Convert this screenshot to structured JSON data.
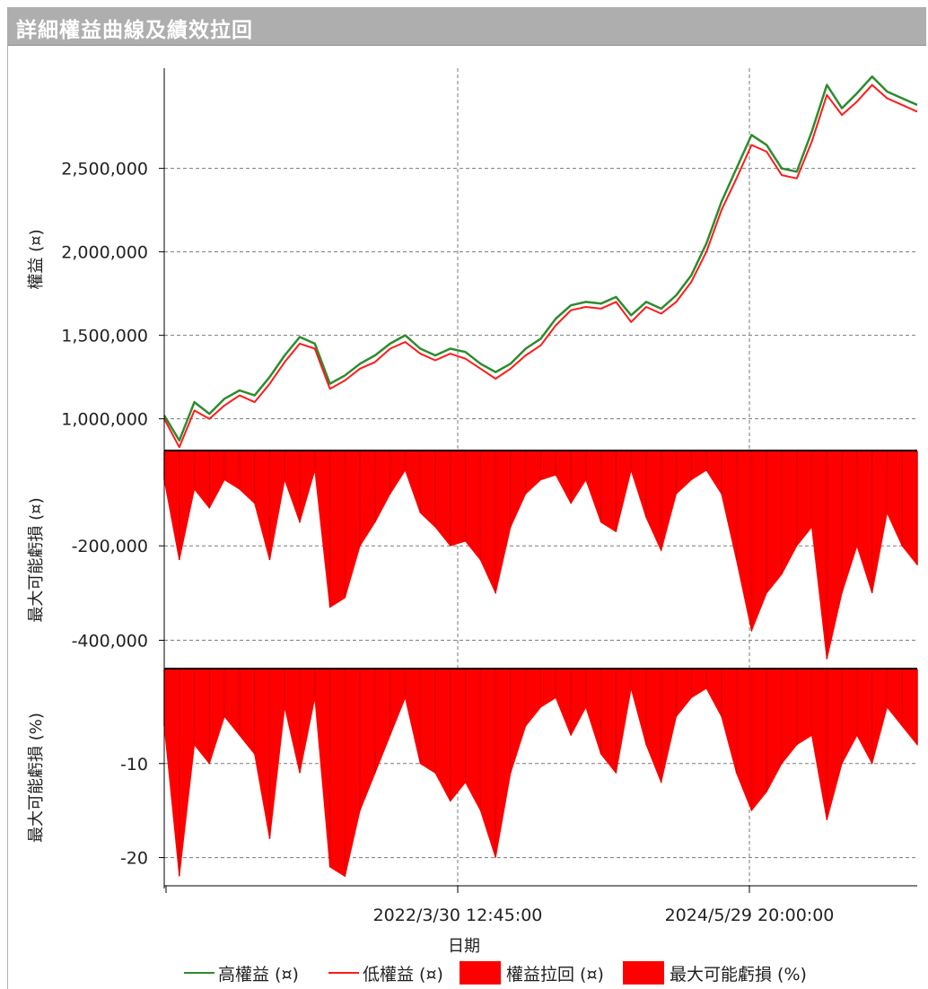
{
  "window": {
    "title": "詳細權益曲線及績效拉回"
  },
  "colors": {
    "high": "#2e8b2e",
    "low": "#ff1a1a",
    "fill": "#ff0000",
    "grid": "#7a7a7a"
  },
  "x_axis": {
    "label": "日期",
    "ticks": [
      "2022/3/30 12:45:00",
      "2024/5/29 20:00:00"
    ]
  },
  "legend": [
    {
      "label": "高權益 (¤)",
      "kind": "line",
      "color": "#2e8b2e"
    },
    {
      "label": "低權益 (¤)",
      "kind": "line",
      "color": "#ff1a1a"
    },
    {
      "label": "權益拉回 (¤)",
      "kind": "box",
      "color": "#ff0000"
    },
    {
      "label": "最大可能虧損 (%)",
      "kind": "box",
      "color": "#ff0000"
    }
  ],
  "chart_data": [
    {
      "type": "line",
      "ylabel": "權益 (¤)",
      "ylim": [
        810000,
        3100000
      ],
      "yticks": [
        "1,000,000",
        "1,500,000",
        "2,000,000",
        "2,500,000"
      ],
      "ytick_values": [
        1000000,
        1500000,
        2000000,
        2500000
      ],
      "x": [
        0,
        0.02,
        0.04,
        0.06,
        0.08,
        0.1,
        0.12,
        0.14,
        0.16,
        0.18,
        0.2,
        0.22,
        0.24,
        0.26,
        0.28,
        0.3,
        0.32,
        0.34,
        0.36,
        0.38,
        0.4,
        0.42,
        0.44,
        0.46,
        0.48,
        0.5,
        0.52,
        0.54,
        0.56,
        0.58,
        0.6,
        0.62,
        0.64,
        0.66,
        0.68,
        0.7,
        0.72,
        0.74,
        0.76,
        0.78,
        0.8,
        0.82,
        0.84,
        0.86,
        0.88,
        0.9,
        0.92,
        0.94,
        0.96,
        0.98,
        1.0
      ],
      "series": [
        {
          "name": "高權益 (¤)",
          "values": [
            1020000,
            870000,
            1100000,
            1030000,
            1120000,
            1170000,
            1140000,
            1250000,
            1380000,
            1490000,
            1450000,
            1210000,
            1260000,
            1330000,
            1380000,
            1450000,
            1500000,
            1420000,
            1380000,
            1420000,
            1400000,
            1330000,
            1280000,
            1330000,
            1420000,
            1480000,
            1600000,
            1680000,
            1700000,
            1690000,
            1730000,
            1620000,
            1700000,
            1660000,
            1740000,
            1860000,
            2050000,
            2300000,
            2500000,
            2700000,
            2640000,
            2500000,
            2480000,
            2720000,
            3000000,
            2860000,
            2950000,
            3050000,
            2960000,
            2920000,
            2880000
          ]
        },
        {
          "name": "低權益 (¤)",
          "values": [
            1000000,
            830000,
            1050000,
            1000000,
            1080000,
            1140000,
            1100000,
            1210000,
            1340000,
            1450000,
            1420000,
            1180000,
            1230000,
            1300000,
            1340000,
            1420000,
            1460000,
            1390000,
            1350000,
            1390000,
            1360000,
            1300000,
            1240000,
            1300000,
            1380000,
            1440000,
            1560000,
            1650000,
            1670000,
            1660000,
            1700000,
            1580000,
            1670000,
            1630000,
            1700000,
            1820000,
            2000000,
            2250000,
            2440000,
            2640000,
            2600000,
            2460000,
            2440000,
            2660000,
            2940000,
            2820000,
            2900000,
            3000000,
            2920000,
            2880000,
            2840000
          ]
        }
      ]
    },
    {
      "type": "area",
      "ylabel": "最大可能虧損 (¤)",
      "ylim": [
        -460000,
        0
      ],
      "yticks": [
        "-200,000",
        "-400,000"
      ],
      "ytick_values": [
        -200000,
        -400000
      ],
      "x": [
        0,
        0.02,
        0.04,
        0.06,
        0.08,
        0.1,
        0.12,
        0.14,
        0.16,
        0.18,
        0.2,
        0.22,
        0.24,
        0.26,
        0.28,
        0.3,
        0.32,
        0.34,
        0.36,
        0.38,
        0.4,
        0.42,
        0.44,
        0.46,
        0.48,
        0.5,
        0.52,
        0.54,
        0.56,
        0.58,
        0.6,
        0.62,
        0.64,
        0.66,
        0.68,
        0.7,
        0.72,
        0.74,
        0.76,
        0.78,
        0.8,
        0.82,
        0.84,
        0.86,
        0.88,
        0.9,
        0.92,
        0.94,
        0.96,
        0.98,
        1.0
      ],
      "series": [
        {
          "name": "權益拉回 (¤)",
          "values": [
            -60000,
            -230000,
            -80000,
            -120000,
            -60000,
            -80000,
            -110000,
            -230000,
            -60000,
            -150000,
            -40000,
            -330000,
            -310000,
            -200000,
            -150000,
            -90000,
            -40000,
            -130000,
            -160000,
            -200000,
            -190000,
            -230000,
            -300000,
            -160000,
            -90000,
            -60000,
            -50000,
            -110000,
            -60000,
            -150000,
            -170000,
            -40000,
            -140000,
            -210000,
            -90000,
            -60000,
            -40000,
            -90000,
            -230000,
            -380000,
            -300000,
            -260000,
            -200000,
            -160000,
            -440000,
            -300000,
            -200000,
            -300000,
            -130000,
            -200000,
            -240000
          ]
        }
      ]
    },
    {
      "type": "area",
      "ylabel": "最大可能虧損 (%)",
      "ylim": [
        -23,
        0
      ],
      "yticks": [
        "-10",
        "-20"
      ],
      "ytick_values": [
        -10,
        -20
      ],
      "x": [
        0,
        0.02,
        0.04,
        0.06,
        0.08,
        0.1,
        0.12,
        0.14,
        0.16,
        0.18,
        0.2,
        0.22,
        0.24,
        0.26,
        0.28,
        0.3,
        0.32,
        0.34,
        0.36,
        0.38,
        0.4,
        0.42,
        0.44,
        0.46,
        0.48,
        0.5,
        0.52,
        0.54,
        0.56,
        0.58,
        0.6,
        0.62,
        0.64,
        0.66,
        0.68,
        0.7,
        0.72,
        0.74,
        0.76,
        0.78,
        0.8,
        0.82,
        0.84,
        0.86,
        0.88,
        0.9,
        0.92,
        0.94,
        0.96,
        0.98,
        1.0
      ],
      "series": [
        {
          "name": "最大可能虧損 (%)",
          "values": [
            -6,
            -22,
            -8,
            -10,
            -5,
            -7,
            -9,
            -18,
            -4,
            -11,
            -3,
            -21,
            -22,
            -15,
            -11,
            -7,
            -3,
            -10,
            -11,
            -14,
            -12,
            -15,
            -20,
            -11,
            -6,
            -4,
            -3,
            -7,
            -4,
            -9,
            -11,
            -2,
            -8,
            -12,
            -5,
            -3,
            -2,
            -5,
            -11,
            -15,
            -13,
            -10,
            -8,
            -7,
            -16,
            -10,
            -7,
            -10,
            -4,
            -6,
            -8
          ]
        }
      ]
    }
  ]
}
